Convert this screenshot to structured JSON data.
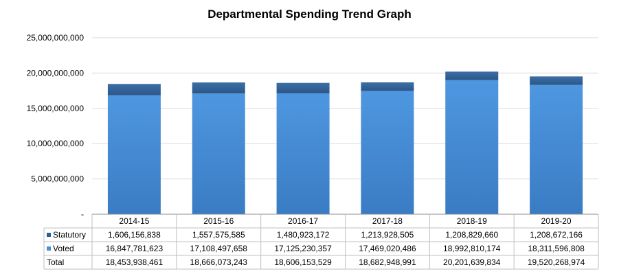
{
  "chart_data": {
    "type": "bar",
    "stacked": true,
    "title": "Departmental Spending Trend Graph",
    "categories": [
      "2014-15",
      "2015-16",
      "2016-17",
      "2017-18",
      "2018-19",
      "2019-20"
    ],
    "series": [
      {
        "name": "Voted",
        "values": [
          16847781623,
          17108497658,
          17125230357,
          17469020486,
          18992810174,
          18311596808
        ],
        "display": [
          "16,847,781,623",
          "17,108,497,658",
          "17,125,230,357",
          "17,469,020,486",
          "18,992,810,174",
          "18,311,596,808"
        ],
        "color": "#4a90d9"
      },
      {
        "name": "Statutory",
        "values": [
          1606156838,
          1557575585,
          1480923172,
          1213928505,
          1208829660,
          1208672166
        ],
        "display": [
          "1,606,156,838",
          "1,557,575,585",
          "1,480,923,172",
          "1,213,928,505",
          "1,208,829,660",
          "1,208,672,166"
        ],
        "color": "#2f5f93"
      }
    ],
    "total": {
      "name": "Total",
      "display": [
        "18,453,938,461",
        "18,666,073,243",
        "18,606,153,529",
        "18,682,948,991",
        "20,201,639,834",
        "19,520,268,974"
      ]
    },
    "yticks": [
      "-",
      "5,000,000,000",
      "10,000,000,000",
      "15,000,000,000",
      "20,000,000,000",
      "25,000,000,000"
    ],
    "ylim": [
      0,
      25000000000
    ],
    "grid": true,
    "legend": "data-table"
  }
}
